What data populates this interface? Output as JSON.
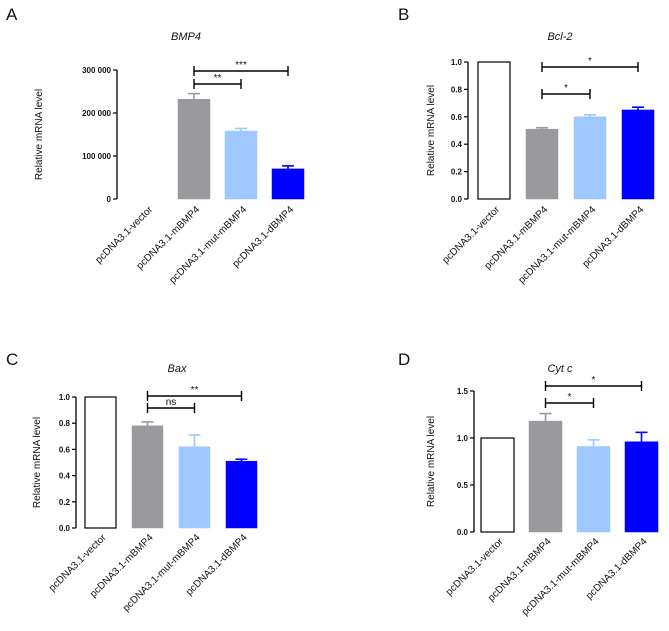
{
  "chart_data": [
    {
      "panel": "A",
      "type": "bar",
      "title": "BMP4",
      "ylabel": "Relative mRNA  level",
      "categories": [
        "pcDNA3.1-vector",
        "pcDNA3.1-mBMP4",
        "pcDNA3.1-mut-mBMP4",
        "pcDNA3.1-dBMP4"
      ],
      "values": [
        0,
        232000,
        158000,
        70000
      ],
      "errors": [
        0,
        13000,
        6000,
        7000
      ],
      "colors": [
        "#ffffff",
        "#9a9a9e",
        "#9ec8ff",
        "#0000ff"
      ],
      "ylim": [
        0,
        300000
      ],
      "yticks": [
        0,
        100000,
        200000,
        300000
      ],
      "ytick_labels": [
        "0",
        "100 000",
        "200 000",
        "300 000"
      ],
      "significance": [
        {
          "from": 1,
          "to": 2,
          "label": "**"
        },
        {
          "from": 1,
          "to": 3,
          "label": "***"
        }
      ]
    },
    {
      "panel": "B",
      "type": "bar",
      "title": "Bcl-2",
      "ylabel": "Relative mRNA  level",
      "categories": [
        "pcDNA3.1-vector",
        "pcDNA3.1-mBMP4",
        "pcDNA3.1-mut-mBMP4",
        "pcDNA3.1-dBMP4"
      ],
      "values": [
        1.0,
        0.51,
        0.6,
        0.65
      ],
      "errors": [
        0,
        0.01,
        0.015,
        0.02
      ],
      "colors": [
        "#ffffff",
        "#9a9a9e",
        "#9ec8ff",
        "#0000ff"
      ],
      "ylim": [
        0,
        1.0
      ],
      "yticks": [
        0,
        0.2,
        0.4,
        0.6,
        0.8,
        1.0
      ],
      "ytick_labels": [
        "0.0",
        "0.2",
        "0.4",
        "0.6",
        "0.8",
        "1.0"
      ],
      "significance": [
        {
          "from": 1,
          "to": 2,
          "label": "*"
        },
        {
          "from": 1,
          "to": 3,
          "label": "*"
        }
      ]
    },
    {
      "panel": "C",
      "type": "bar",
      "title": "Bax",
      "ylabel": "Relative mRNA  level",
      "categories": [
        "pcDNA3.1-vector",
        "pcDNA3.1-mBMP4",
        "pcDNA3.1-mut-mBMP4",
        "pcDNA3.1-dBMP4"
      ],
      "values": [
        1.0,
        0.78,
        0.62,
        0.51
      ],
      "errors": [
        0,
        0.03,
        0.09,
        0.015
      ],
      "colors": [
        "#ffffff",
        "#9a9a9e",
        "#9ec8ff",
        "#0000ff"
      ],
      "ylim": [
        0,
        1.0
      ],
      "yticks": [
        0,
        0.2,
        0.4,
        0.6,
        0.8,
        1.0
      ],
      "ytick_labels": [
        "0.0",
        "0.2",
        "0.4",
        "0.6",
        "0.8",
        "1.0"
      ],
      "significance": [
        {
          "from": 1,
          "to": 2,
          "label": "ns"
        },
        {
          "from": 1,
          "to": 3,
          "label": "**"
        }
      ]
    },
    {
      "panel": "D",
      "type": "bar",
      "title": "Cyt c",
      "ylabel": "Relative mRNA  level",
      "categories": [
        "pcDNA3.1-vector",
        "pcDNA3.1-mBMP4",
        "pcDNA3.1-mut-mBMP4",
        "pcDNA3.1-dBMP4"
      ],
      "values": [
        1.0,
        1.18,
        0.91,
        0.96
      ],
      "errors": [
        0,
        0.08,
        0.07,
        0.1
      ],
      "colors": [
        "#ffffff",
        "#9a9a9e",
        "#9ec8ff",
        "#0000ff"
      ],
      "ylim": [
        0,
        1.5
      ],
      "yticks": [
        0,
        0.5,
        1.0,
        1.5
      ],
      "ytick_labels": [
        "0.0",
        "0.5",
        "1.0",
        "1.5"
      ],
      "significance": [
        {
          "from": 1,
          "to": 2,
          "label": "*"
        },
        {
          "from": 1,
          "to": 3,
          "label": "*"
        }
      ]
    }
  ]
}
